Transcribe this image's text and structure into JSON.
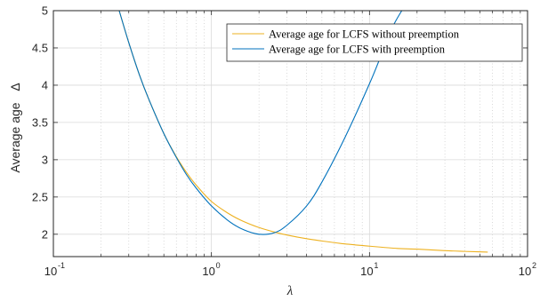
{
  "chart_data": {
    "type": "line",
    "xscale": "log",
    "xlim": [
      0.1,
      100
    ],
    "ylim": [
      1.7,
      5
    ],
    "grid": true,
    "legend_position": "top-right",
    "xlabel": "λ",
    "ylabel": "Average age",
    "ylabel_symbol": "Δ",
    "x_ticks": [
      {
        "base": "10",
        "exp": "-1",
        "value": 0.1
      },
      {
        "base": "10",
        "exp": "0",
        "value": 1
      },
      {
        "base": "10",
        "exp": "1",
        "value": 10
      },
      {
        "base": "10",
        "exp": "2",
        "value": 100
      }
    ],
    "y_ticks": [
      "2",
      "2.5",
      "3",
      "3.5",
      "4",
      "4.5",
      "5"
    ],
    "y_tick_values": [
      2,
      2.5,
      3,
      3.5,
      4,
      4.5,
      5
    ],
    "series": [
      {
        "name": "Average age for LCFS without preemption",
        "color": "#EDB120",
        "x": [
          0.26,
          0.3,
          0.35,
          0.4,
          0.5,
          0.6,
          0.7,
          0.8,
          1.0,
          1.3,
          1.6,
          2.0,
          2.5,
          3,
          4,
          5,
          7,
          10,
          15,
          20,
          30,
          40,
          56
        ],
        "y": [
          5.01,
          4.57,
          4.14,
          3.82,
          3.35,
          3.04,
          2.82,
          2.66,
          2.44,
          2.27,
          2.17,
          2.09,
          2.03,
          1.99,
          1.94,
          1.91,
          1.87,
          1.84,
          1.81,
          1.8,
          1.78,
          1.77,
          1.76
        ]
      },
      {
        "name": "Average age for LCFS with preemption",
        "color": "#0072BD",
        "x": [
          0.26,
          0.3,
          0.35,
          0.4,
          0.5,
          0.6,
          0.7,
          0.8,
          1.0,
          1.3,
          1.6,
          2.0,
          2.5,
          3,
          4,
          5,
          7,
          10,
          12,
          14,
          16
        ],
        "y": [
          5.01,
          4.57,
          4.14,
          3.82,
          3.35,
          3.03,
          2.79,
          2.62,
          2.38,
          2.17,
          2.06,
          2.0,
          2.02,
          2.12,
          2.38,
          2.7,
          3.3,
          4.02,
          4.43,
          4.78,
          5.0
        ]
      }
    ]
  }
}
